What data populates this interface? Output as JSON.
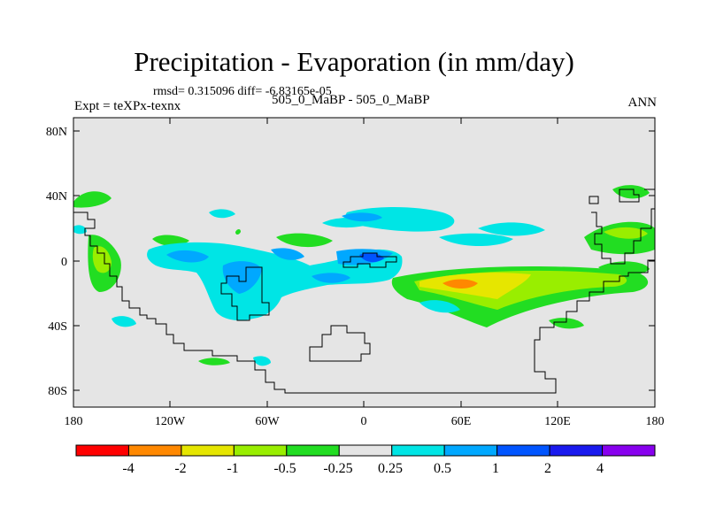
{
  "title": "Precipitation - Evaporation (in mm/day)",
  "stats": "rmsd= 0.315096 diff= -6.83165e-05",
  "expt": "Expt = teXPx-texnx",
  "run": "505_0_MaBP - 505_0_MaBP",
  "season": "ANN",
  "y_ticks": [
    "80N",
    "40N",
    "0",
    "40S",
    "80S"
  ],
  "x_ticks": [
    "180",
    "120W",
    "60W",
    "0",
    "60E",
    "120E",
    "180"
  ],
  "colorbar": {
    "colors": [
      "#ff0000",
      "#ff8800",
      "#e6e600",
      "#99ee00",
      "#22dd22",
      "#e5e5e5",
      "#00e5e5",
      "#00a8ff",
      "#0055ff",
      "#1a1aee",
      "#8800ee"
    ],
    "labels": [
      "-4",
      "-2",
      "-1",
      "-0.5",
      "-0.25",
      "0.25",
      "0.5",
      "1",
      "2",
      "4"
    ]
  },
  "map_colors": {
    "background": "#e5e5e5",
    "coast": "#000000"
  }
}
